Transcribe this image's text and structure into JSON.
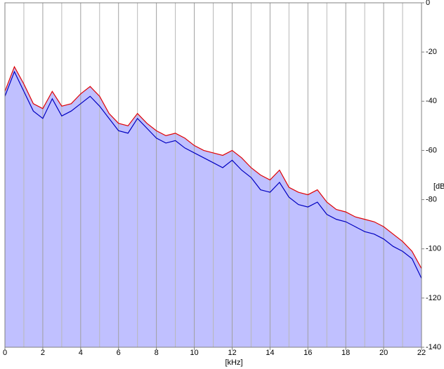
{
  "chart_data": {
    "type": "line",
    "xlabel": "[kHz]",
    "ylabel": "[dB",
    "x": [
      0,
      0.5,
      1,
      1.5,
      2,
      2.5,
      3,
      3.5,
      4,
      4.5,
      5,
      5.5,
      6,
      6.5,
      7,
      7.5,
      8,
      8.5,
      9,
      9.5,
      10,
      10.5,
      11,
      11.5,
      12,
      12.5,
      13,
      13.5,
      14,
      14.5,
      15,
      15.5,
      16,
      16.5,
      17,
      17.5,
      18,
      18.5,
      19,
      19.5,
      20,
      20.5,
      21,
      21.5,
      22
    ],
    "series": [
      {
        "color": "#e00000",
        "values": [
          -36,
          -26,
          -33,
          -41,
          -43,
          -36,
          -42,
          -41,
          -37,
          -34,
          -38,
          -45,
          -49,
          -50,
          -45,
          -49,
          -52,
          -54,
          -53,
          -55,
          -58,
          -60,
          -61,
          -62,
          -60,
          -63,
          -67,
          -70,
          -72,
          -68,
          -75,
          -77,
          -78,
          -76,
          -81,
          -84,
          -85,
          -87,
          -88,
          -89,
          -91,
          -94,
          -97,
          -101,
          -108
        ]
      },
      {
        "color": "#0000c0",
        "values": [
          -38,
          -28,
          -36,
          -44,
          -47,
          -39,
          -46,
          -44,
          -41,
          -38,
          -42,
          -47,
          -52,
          -53,
          -47,
          -51,
          -55,
          -57,
          -56,
          -59,
          -61,
          -63,
          -65,
          -67,
          -64,
          -68,
          -71,
          -76,
          -77,
          -73,
          -79,
          -82,
          -83,
          -81,
          -86,
          -88,
          -89,
          -91,
          -93,
          -94,
          -96,
          -99,
          -101,
          -104,
          -112
        ]
      }
    ],
    "fill_color": "#c0c0ff",
    "xlim": [
      0,
      22
    ],
    "xticks": [
      0,
      2,
      4,
      6,
      8,
      10,
      12,
      14,
      16,
      18,
      20,
      22
    ],
    "ylim": [
      -140,
      0
    ],
    "yticks": [
      0,
      -20,
      -40,
      -60,
      -80,
      -100,
      -120,
      -140
    ],
    "grid": true
  }
}
